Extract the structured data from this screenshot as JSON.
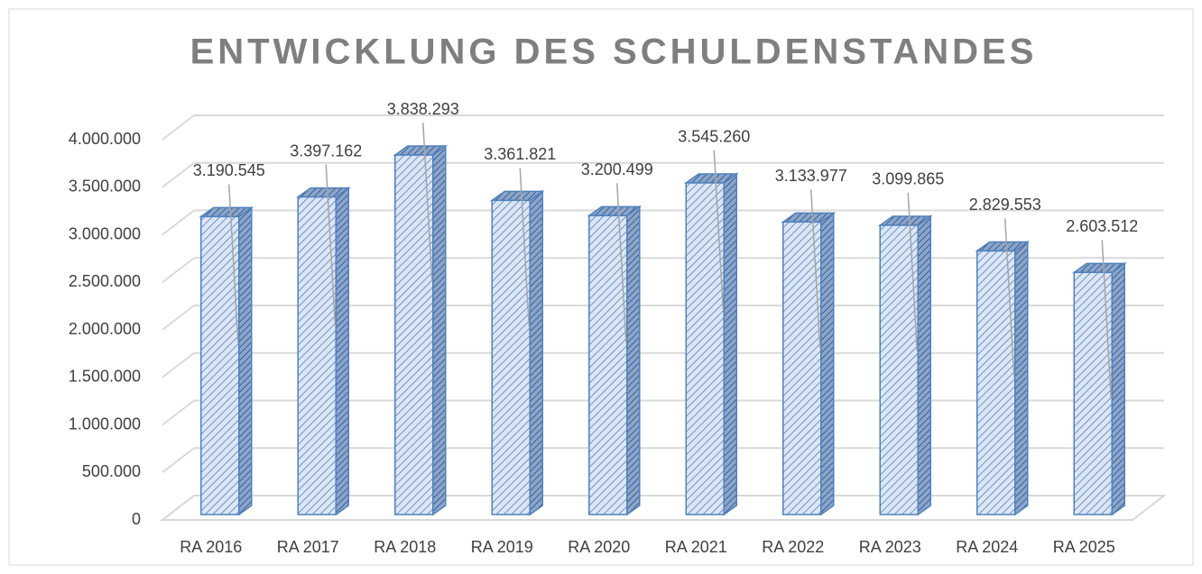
{
  "chart_data": {
    "type": "bar3d",
    "title": "ENTWICKLUNG DES SCHULDENSTANDES",
    "categories": [
      "RA 2016",
      "RA 2017",
      "RA 2018",
      "RA 2019",
      "RA 2020",
      "RA 2021",
      "RA 2022",
      "RA 2023",
      "RA 2024",
      "RA 2025"
    ],
    "values": [
      3190545,
      3397162,
      3838293,
      3361821,
      3200499,
      3545260,
      3133977,
      3099865,
      2829553,
      2603512
    ],
    "value_labels": [
      "3.190.545",
      "3.397.162",
      "3.838.293",
      "3.361.821",
      "3.200.499",
      "3.545.260",
      "3.133.977",
      "3.099.865",
      "2.829.553",
      "2.603.512"
    ],
    "color": "#4f81bd",
    "ylim": [
      0,
      4000000
    ],
    "yticks": [
      0,
      {
        "value": 500000,
        "label": "500.000"
      },
      {
        "value": 1000000,
        "label": "1.000.000"
      },
      {
        "value": 1500000,
        "label": "1.500.000"
      },
      {
        "value": 2000000,
        "label": "2.000.000"
      },
      {
        "value": 2500000,
        "label": "2.500.000"
      },
      {
        "value": 3000000,
        "label": "3.000.000"
      },
      {
        "value": 3500000,
        "label": "3.500.000"
      },
      {
        "value": 4000000,
        "label": "4.000.000"
      }
    ],
    "grid": true
  }
}
